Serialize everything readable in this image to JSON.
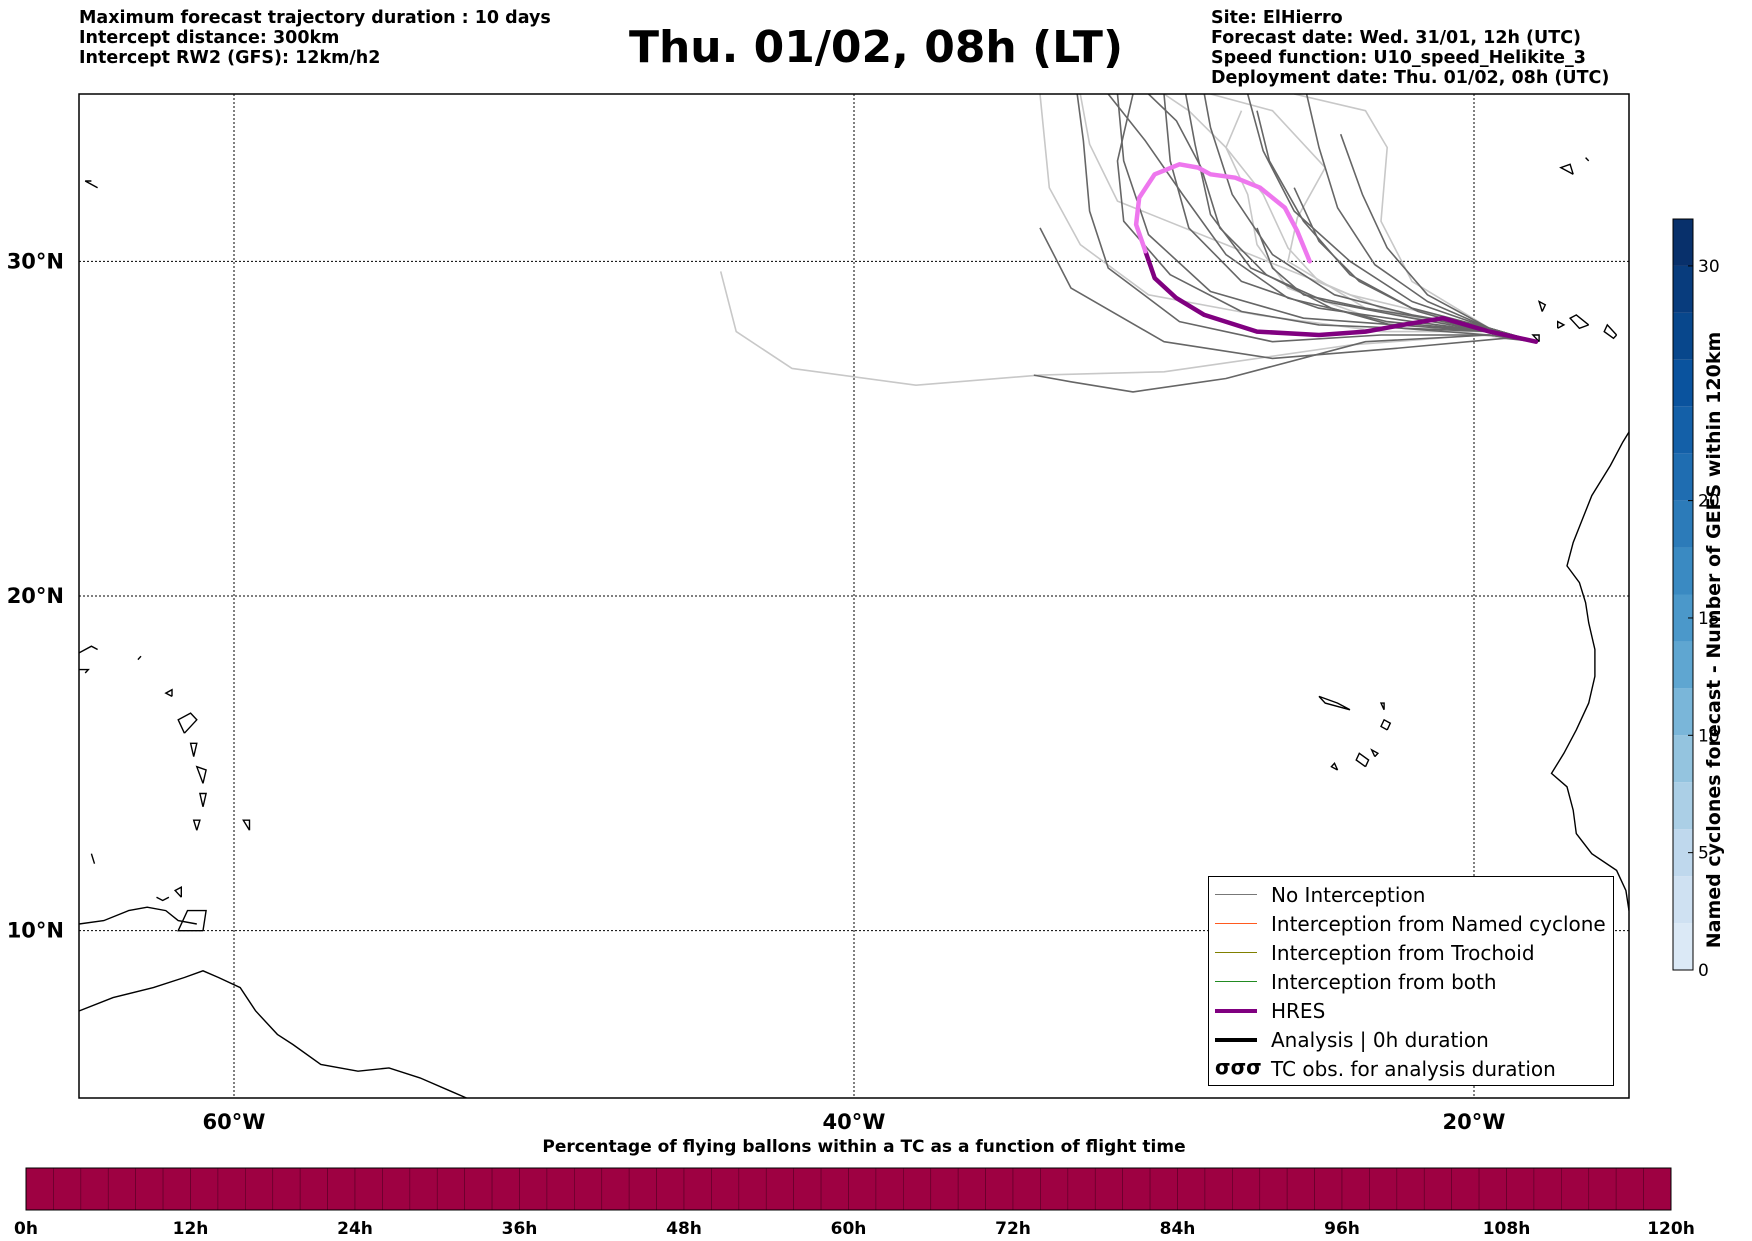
{
  "header": {
    "left_lines": [
      "Maximum forecast trajectory duration : 10 days",
      "Intercept distance: 300km",
      "Intercept RW2 (GFS):  12km/h2"
    ],
    "title": "Thu. 01/02, 08h (LT)",
    "right_lines": [
      "Site: ElHierro",
      "Forecast date: Wed. 31/01, 12h (UTC)",
      "Speed function: U10_speed_Helikite_3",
      "Deployment date: Thu. 01/02, 08h (UTC)"
    ]
  },
  "map": {
    "lon_range": [
      -65,
      -15
    ],
    "lat_range": [
      5,
      35
    ],
    "lon_ticks": [
      {
        "value": -60,
        "label": "60°W"
      },
      {
        "value": -40,
        "label": "40°W"
      },
      {
        "value": -20,
        "label": "20°W"
      }
    ],
    "lat_ticks": [
      {
        "value": 30,
        "label": "30°N"
      },
      {
        "value": 20,
        "label": "20°N"
      },
      {
        "value": 10,
        "label": "10°N"
      }
    ],
    "grid": "dotted",
    "launch_site": {
      "name": "ElHierro",
      "lon": -18.0,
      "lat": 27.6
    }
  },
  "colors": {
    "no_interception": "#666666",
    "no_interception_faded": "#c8c8c8",
    "named_cyclone": "#ff5a1f",
    "trochoid": "#808000",
    "both": "#228b22",
    "hres": "#800080",
    "hres_late": "#ee77ee",
    "analysis": "#000000",
    "coast": "#000000",
    "flight_bar": "#9e0142"
  },
  "legend": {
    "placement": "lower-right",
    "items": [
      {
        "label": "No Interception",
        "style": "thin",
        "color": "#777777"
      },
      {
        "label": "Interception from Named cyclone",
        "style": "thin",
        "color": "#ff5a1f"
      },
      {
        "label": "Interception from Trochoid",
        "style": "thin",
        "color": "#808000"
      },
      {
        "label": "Interception from both",
        "style": "thin",
        "color": "#228b22"
      },
      {
        "label": "HRES",
        "style": "thick",
        "color": "#800080"
      },
      {
        "label": "Analysis | 0h duration",
        "style": "thick",
        "color": "#000000"
      },
      {
        "label": "TC obs. for analysis duration",
        "style": "glyph",
        "color": "#000000",
        "glyph": "σσσ"
      }
    ]
  },
  "colorbar": {
    "label": "Named cyclones forecast - Number of GEFS within 120km",
    "range": [
      0,
      32
    ],
    "ticks": [
      0,
      5,
      10,
      15,
      20,
      30
    ],
    "levels": [
      0,
      2,
      4,
      6,
      8,
      10,
      12,
      14,
      16,
      18,
      20,
      22,
      24,
      26,
      28,
      30,
      32
    ],
    "colors": [
      "#dbe9f6",
      "#cfe1f2",
      "#bfd8ed",
      "#abcfe6",
      "#94c4df",
      "#7ab6d9",
      "#5fa6d1",
      "#4b98ca",
      "#3a8ac2",
      "#2c7bb9",
      "#1f6db1",
      "#1460a8",
      "#0a539e",
      "#08478c",
      "#083c7d",
      "#08306b"
    ]
  },
  "flight_time_bar": {
    "title": "Percentage of flying ballons within a TC as a function of flight time",
    "tick_labels": [
      "0h",
      "12h",
      "24h",
      "36h",
      "48h",
      "60h",
      "72h",
      "84h",
      "96h",
      "108h",
      "120h"
    ],
    "hours": [
      0,
      120
    ],
    "segments": 60,
    "percent_all_hours": 0
  },
  "chart_data": {
    "type": "line",
    "xlabel": "",
    "ylabel": "",
    "series": [
      {
        "name": "HRES",
        "x": [
          -18.0,
          -19.5,
          -21.0,
          -22.3,
          -23.5,
          -25.0,
          -27.0,
          -28.7,
          -29.6,
          -30.3,
          -30.6
        ],
        "y": [
          27.6,
          27.9,
          28.3,
          28.1,
          27.9,
          27.8,
          27.9,
          28.4,
          28.9,
          29.5,
          30.3
        ]
      },
      {
        "name": "HRES",
        "x": [
          -30.6,
          -30.9,
          -30.8,
          -30.3,
          -29.5,
          -28.9,
          -28.5,
          -27.7,
          -26.9,
          -26.1,
          -25.7,
          -25.3
        ],
        "y": [
          30.3,
          31.1,
          31.9,
          32.6,
          32.9,
          32.8,
          32.6,
          32.5,
          32.2,
          31.6,
          30.9,
          30.0
        ]
      }
    ]
  }
}
